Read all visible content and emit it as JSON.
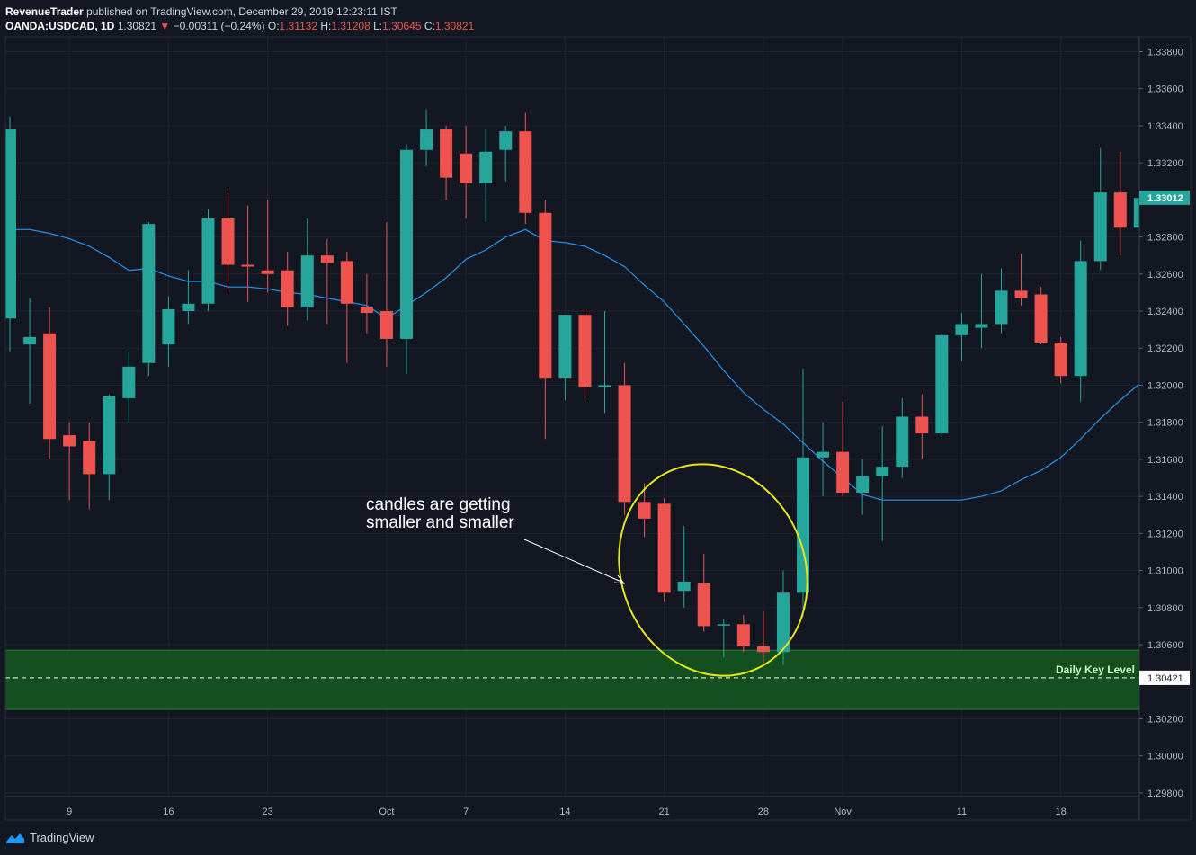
{
  "header": {
    "publisher": "RevenueTrader",
    "published_text": "published on TradingView.com, December 29, 2019 12:23:11 IST",
    "symbol": "OANDA:USDCAD, 1D",
    "last": "1.30821",
    "change_arrow": "▼",
    "change": "−0.00311 (−0.24%)",
    "o_label": "O:",
    "o_value": "1.31132",
    "h_label": "H:",
    "h_value": "1.31208",
    "l_label": "L:",
    "l_value": "1.30645",
    "c_label": "C:",
    "c_value": "1.30821"
  },
  "footer": {
    "brand": "TradingView",
    "logo_icon": "tradingview-logo-icon"
  },
  "colors": {
    "background": "#131722",
    "up": "#26a69a",
    "down": "#ef5350",
    "ma": "#2196f3",
    "key_zone": "#134f1f",
    "annotation_ellipse": "#e6e619"
  },
  "chart_data": {
    "type": "candlestick",
    "title": "",
    "y_range": [
      1.2978,
      1.3388
    ],
    "y_ticks": [
      "1.33800",
      "1.33600",
      "1.33400",
      "1.33200",
      "1.33000",
      "1.32800",
      "1.32600",
      "1.32400",
      "1.32200",
      "1.32000",
      "1.31800",
      "1.31600",
      "1.31400",
      "1.31200",
      "1.31000",
      "1.30800",
      "1.30600",
      "1.30400",
      "1.30200",
      "1.30000",
      "1.29800"
    ],
    "x_ticks": [
      {
        "label": "9",
        "index": 3
      },
      {
        "label": "16",
        "index": 8
      },
      {
        "label": "23",
        "index": 13
      },
      {
        "label": "Oct",
        "index": 19
      },
      {
        "label": "7",
        "index": 23
      },
      {
        "label": "14",
        "index": 28
      },
      {
        "label": "21",
        "index": 33
      },
      {
        "label": "28",
        "index": 38
      },
      {
        "label": "Nov",
        "index": 42
      },
      {
        "label": "11",
        "index": 48
      },
      {
        "label": "18",
        "index": 53
      }
    ],
    "candles": [
      {
        "o": 1.3236,
        "h": 1.3345,
        "l": 1.3218,
        "c": 1.3338
      },
      {
        "o": 1.3222,
        "h": 1.3247,
        "l": 1.319,
        "c": 1.3226
      },
      {
        "o": 1.3228,
        "h": 1.3242,
        "l": 1.316,
        "c": 1.3171
      },
      {
        "o": 1.3173,
        "h": 1.318,
        "l": 1.3138,
        "c": 1.3167
      },
      {
        "o": 1.317,
        "h": 1.318,
        "l": 1.3133,
        "c": 1.3152
      },
      {
        "o": 1.3152,
        "h": 1.3195,
        "l": 1.3138,
        "c": 1.3194
      },
      {
        "o": 1.3193,
        "h": 1.3218,
        "l": 1.318,
        "c": 1.321
      },
      {
        "o": 1.3212,
        "h": 1.3288,
        "l": 1.3205,
        "c": 1.3287
      },
      {
        "o": 1.3222,
        "h": 1.3248,
        "l": 1.321,
        "c": 1.3241
      },
      {
        "o": 1.324,
        "h": 1.3262,
        "l": 1.3233,
        "c": 1.3244
      },
      {
        "o": 1.3244,
        "h": 1.3295,
        "l": 1.324,
        "c": 1.329
      },
      {
        "o": 1.329,
        "h": 1.3305,
        "l": 1.325,
        "c": 1.3265
      },
      {
        "o": 1.3265,
        "h": 1.3297,
        "l": 1.3245,
        "c": 1.3264
      },
      {
        "o": 1.3262,
        "h": 1.33,
        "l": 1.325,
        "c": 1.326
      },
      {
        "o": 1.3262,
        "h": 1.3272,
        "l": 1.3232,
        "c": 1.3242
      },
      {
        "o": 1.3242,
        "h": 1.329,
        "l": 1.3235,
        "c": 1.327
      },
      {
        "o": 1.327,
        "h": 1.3279,
        "l": 1.3233,
        "c": 1.3266
      },
      {
        "o": 1.3267,
        "h": 1.3272,
        "l": 1.3212,
        "c": 1.3244
      },
      {
        "o": 1.3242,
        "h": 1.326,
        "l": 1.3228,
        "c": 1.3239
      },
      {
        "o": 1.324,
        "h": 1.3288,
        "l": 1.321,
        "c": 1.3225
      },
      {
        "o": 1.3225,
        "h": 1.333,
        "l": 1.3206,
        "c": 1.3327
      },
      {
        "o": 1.3327,
        "h": 1.3349,
        "l": 1.3318,
        "c": 1.3338
      },
      {
        "o": 1.3338,
        "h": 1.334,
        "l": 1.33,
        "c": 1.3312
      },
      {
        "o": 1.3325,
        "h": 1.334,
        "l": 1.329,
        "c": 1.3309
      },
      {
        "o": 1.3309,
        "h": 1.3338,
        "l": 1.3288,
        "c": 1.3326
      },
      {
        "o": 1.3327,
        "h": 1.334,
        "l": 1.331,
        "c": 1.3337
      },
      {
        "o": 1.3337,
        "h": 1.3347,
        "l": 1.3287,
        "c": 1.3293
      },
      {
        "o": 1.3293,
        "h": 1.33,
        "l": 1.3171,
        "c": 1.3204
      },
      {
        "o": 1.3204,
        "h": 1.3238,
        "l": 1.3192,
        "c": 1.3238
      },
      {
        "o": 1.3238,
        "h": 1.3241,
        "l": 1.3193,
        "c": 1.3199
      },
      {
        "o": 1.3199,
        "h": 1.324,
        "l": 1.3185,
        "c": 1.32
      },
      {
        "o": 1.32,
        "h": 1.3212,
        "l": 1.313,
        "c": 1.3137
      },
      {
        "o": 1.3137,
        "h": 1.3147,
        "l": 1.3118,
        "c": 1.3128
      },
      {
        "o": 1.3136,
        "h": 1.3139,
        "l": 1.3083,
        "c": 1.3088
      },
      {
        "o": 1.3089,
        "h": 1.3124,
        "l": 1.308,
        "c": 1.3094
      },
      {
        "o": 1.3093,
        "h": 1.3109,
        "l": 1.3067,
        "c": 1.307
      },
      {
        "o": 1.3071,
        "h": 1.3074,
        "l": 1.3053,
        "c": 1.3071
      },
      {
        "o": 1.3071,
        "h": 1.3076,
        "l": 1.3056,
        "c": 1.3059
      },
      {
        "o": 1.3059,
        "h": 1.3078,
        "l": 1.3049,
        "c": 1.3056
      },
      {
        "o": 1.3056,
        "h": 1.31,
        "l": 1.3049,
        "c": 1.3088
      },
      {
        "o": 1.3088,
        "h": 1.3209,
        "l": 1.3075,
        "c": 1.3161
      },
      {
        "o": 1.3161,
        "h": 1.318,
        "l": 1.314,
        "c": 1.3164
      },
      {
        "o": 1.3164,
        "h": 1.3191,
        "l": 1.314,
        "c": 1.3142
      },
      {
        "o": 1.3142,
        "h": 1.316,
        "l": 1.313,
        "c": 1.3151
      },
      {
        "o": 1.3151,
        "h": 1.3178,
        "l": 1.3116,
        "c": 1.3156
      },
      {
        "o": 1.3156,
        "h": 1.3193,
        "l": 1.315,
        "c": 1.3183
      },
      {
        "o": 1.3183,
        "h": 1.3195,
        "l": 1.316,
        "c": 1.3174
      },
      {
        "o": 1.3174,
        "h": 1.3228,
        "l": 1.3172,
        "c": 1.3227
      },
      {
        "o": 1.3227,
        "h": 1.3239,
        "l": 1.3213,
        "c": 1.3233
      },
      {
        "o": 1.3231,
        "h": 1.326,
        "l": 1.322,
        "c": 1.3233
      },
      {
        "o": 1.3233,
        "h": 1.3263,
        "l": 1.3228,
        "c": 1.3251
      },
      {
        "o": 1.3251,
        "h": 1.3271,
        "l": 1.3243,
        "c": 1.3247
      },
      {
        "o": 1.3249,
        "h": 1.3253,
        "l": 1.3222,
        "c": 1.3223
      },
      {
        "o": 1.3223,
        "h": 1.3226,
        "l": 1.3201,
        "c": 1.3205
      },
      {
        "o": 1.3205,
        "h": 1.3278,
        "l": 1.3191,
        "c": 1.3267
      },
      {
        "o": 1.3267,
        "h": 1.3328,
        "l": 1.3262,
        "c": 1.3304
      },
      {
        "o": 1.3304,
        "h": 1.3326,
        "l": 1.327,
        "c": 1.3285
      },
      {
        "o": 1.3285,
        "h": 1.3305,
        "l": 1.328,
        "c": 1.3301
      }
    ],
    "moving_average": [
      1.3284,
      1.3284,
      1.3282,
      1.3279,
      1.3275,
      1.3269,
      1.3262,
      1.3263,
      1.3259,
      1.3256,
      1.3256,
      1.3253,
      1.3253,
      1.3252,
      1.325,
      1.3249,
      1.3247,
      1.3245,
      1.3243,
      1.3236,
      1.3243,
      1.325,
      1.3258,
      1.3268,
      1.3273,
      1.328,
      1.3284,
      1.3278,
      1.3277,
      1.3275,
      1.327,
      1.3264,
      1.3254,
      1.3245,
      1.3233,
      1.3221,
      1.3208,
      1.3196,
      1.3187,
      1.3179,
      1.3169,
      1.3159,
      1.315,
      1.3141,
      1.3138,
      1.3138,
      1.3138,
      1.3138,
      1.3138,
      1.314,
      1.3143,
      1.3149,
      1.3154,
      1.3161,
      1.3171,
      1.3182,
      1.3192,
      1.3201
    ],
    "current_price": "1.33012",
    "current_price_value": 1.33012,
    "key_level": {
      "label": "Daily Key Level",
      "price": "1.30421",
      "value": 1.30421,
      "zone": [
        1.3025,
        1.3057
      ]
    },
    "annotation": {
      "text_line1": "candles are getting",
      "text_line2": "smaller and smaller"
    }
  }
}
